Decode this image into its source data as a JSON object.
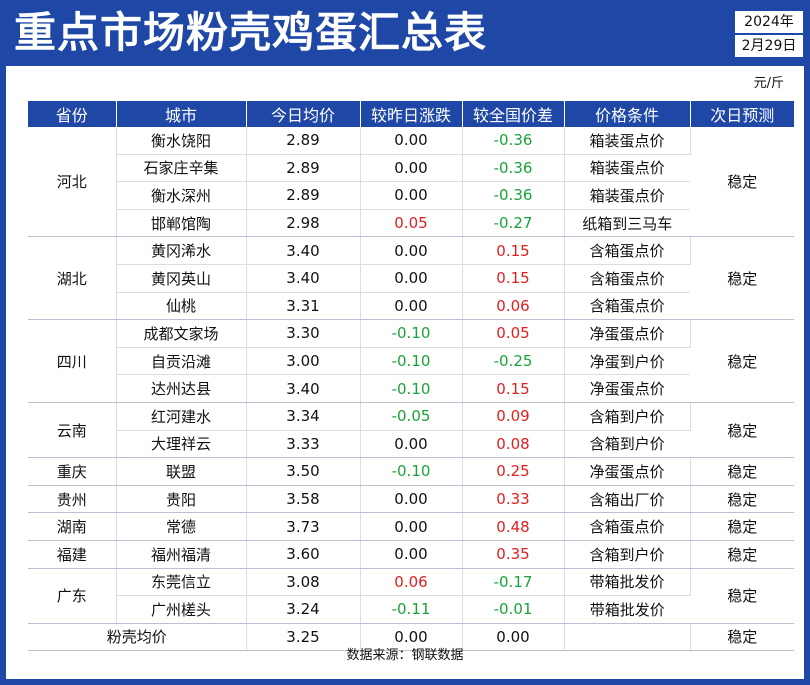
{
  "header": {
    "title": "重点市场粉壳鸡蛋汇总表",
    "year": "2024年",
    "date": "2月29日"
  },
  "unit": "元/斤",
  "columns": [
    "省份",
    "城市",
    "今日均价",
    "较昨日涨跌",
    "较全国价差",
    "价格条件",
    "次日预测"
  ],
  "groups": [
    {
      "province": "河北",
      "forecast": "稳定",
      "rows": [
        {
          "city": "衡水饶阳",
          "price": "2.89",
          "change": "0.00",
          "diff": "-0.36",
          "condition": "箱装蛋点价"
        },
        {
          "city": "石家庄辛集",
          "price": "2.89",
          "change": "0.00",
          "diff": "-0.36",
          "condition": "箱装蛋点价"
        },
        {
          "city": "衡水深州",
          "price": "2.89",
          "change": "0.00",
          "diff": "-0.36",
          "condition": "箱装蛋点价"
        },
        {
          "city": "邯郸馆陶",
          "price": "2.98",
          "change": "0.05",
          "diff": "-0.27",
          "condition": "纸箱到三马车"
        }
      ]
    },
    {
      "province": "湖北",
      "forecast": "稳定",
      "rows": [
        {
          "city": "黄冈浠水",
          "price": "3.40",
          "change": "0.00",
          "diff": "0.15",
          "condition": "含箱蛋点价"
        },
        {
          "city": "黄冈英山",
          "price": "3.40",
          "change": "0.00",
          "diff": "0.15",
          "condition": "含箱蛋点价"
        },
        {
          "city": "仙桃",
          "price": "3.31",
          "change": "0.00",
          "diff": "0.06",
          "condition": "含箱蛋点价"
        }
      ]
    },
    {
      "province": "四川",
      "forecast": "稳定",
      "rows": [
        {
          "city": "成都文家场",
          "price": "3.30",
          "change": "-0.10",
          "diff": "0.05",
          "condition": "净蛋蛋点价"
        },
        {
          "city": "自贡沿滩",
          "price": "3.00",
          "change": "-0.10",
          "diff": "-0.25",
          "condition": "净蛋到户价"
        },
        {
          "city": "达州达县",
          "price": "3.40",
          "change": "-0.10",
          "diff": "0.15",
          "condition": "净蛋蛋点价"
        }
      ]
    },
    {
      "province": "云南",
      "forecast": "稳定",
      "rows": [
        {
          "city": "红河建水",
          "price": "3.34",
          "change": "-0.05",
          "diff": "0.09",
          "condition": "含箱到户价"
        },
        {
          "city": "大理祥云",
          "price": "3.33",
          "change": "0.00",
          "diff": "0.08",
          "condition": "含箱到户价"
        }
      ]
    },
    {
      "province": "重庆",
      "forecast": "稳定",
      "rows": [
        {
          "city": "联盟",
          "price": "3.50",
          "change": "-0.10",
          "diff": "0.25",
          "condition": "净蛋蛋点价"
        }
      ]
    },
    {
      "province": "贵州",
      "forecast": "稳定",
      "rows": [
        {
          "city": "贵阳",
          "price": "3.58",
          "change": "0.00",
          "diff": "0.33",
          "condition": "含箱出厂价"
        }
      ]
    },
    {
      "province": "湖南",
      "forecast": "稳定",
      "rows": [
        {
          "city": "常德",
          "price": "3.73",
          "change": "0.00",
          "diff": "0.48",
          "condition": "含箱蛋点价"
        }
      ]
    },
    {
      "province": "福建",
      "forecast": "稳定",
      "rows": [
        {
          "city": "福州福清",
          "price": "3.60",
          "change": "0.00",
          "diff": "0.35",
          "condition": "含箱到户价"
        }
      ]
    },
    {
      "province": "广东",
      "forecast": "稳定",
      "rows": [
        {
          "city": "东莞信立",
          "price": "3.08",
          "change": "0.06",
          "diff": "-0.17",
          "condition": "带箱批发价"
        },
        {
          "city": "广州槎头",
          "price": "3.24",
          "change": "-0.11",
          "diff": "-0.01",
          "condition": "带箱批发价"
        }
      ]
    }
  ],
  "summary": {
    "label": "粉壳均价",
    "price": "3.25",
    "change": "0.00",
    "diff": "0.00",
    "condition": "",
    "forecast": "稳定"
  },
  "source": "数据来源：钢联数据",
  "colors": {
    "primary": "#1f47a6",
    "positive": "#e0201f",
    "negative": "#1aa33a"
  }
}
